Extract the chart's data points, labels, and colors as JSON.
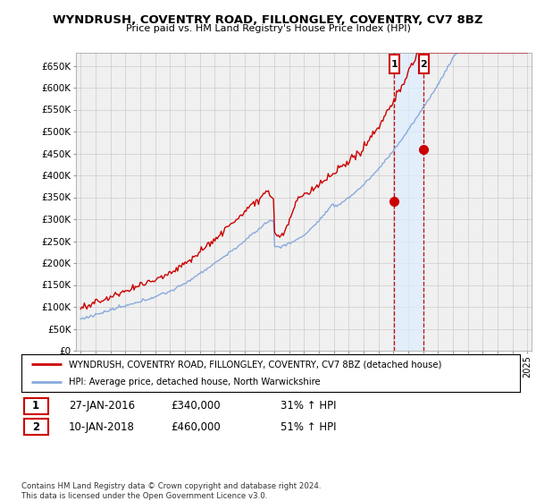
{
  "title": "WYNDRUSH, COVENTRY ROAD, FILLONGLEY, COVENTRY, CV7 8BZ",
  "subtitle": "Price paid vs. HM Land Registry's House Price Index (HPI)",
  "ylim": [
    0,
    680000
  ],
  "yticks": [
    0,
    50000,
    100000,
    150000,
    200000,
    250000,
    300000,
    350000,
    400000,
    450000,
    500000,
    550000,
    600000,
    650000
  ],
  "ytick_labels": [
    "£0",
    "£50K",
    "£100K",
    "£150K",
    "£200K",
    "£250K",
    "£300K",
    "£350K",
    "£400K",
    "£450K",
    "£500K",
    "£550K",
    "£600K",
    "£650K"
  ],
  "sale1_date_num": 2016.07,
  "sale1_price": 340000,
  "sale2_date_num": 2018.05,
  "sale2_price": 460000,
  "legend_line1": "WYNDRUSH, COVENTRY ROAD, FILLONGLEY, COVENTRY, CV7 8BZ (detached house)",
  "legend_line2": "HPI: Average price, detached house, North Warwickshire",
  "table_row1": [
    "1",
    "27-JAN-2016",
    "£340,000",
    "31% ↑ HPI"
  ],
  "table_row2": [
    "2",
    "10-JAN-2018",
    "£460,000",
    "51% ↑ HPI"
  ],
  "copyright": "Contains HM Land Registry data © Crown copyright and database right 2024.\nThis data is licensed under the Open Government Licence v3.0.",
  "red_color": "#cc0000",
  "blue_color": "#88aadd",
  "shade_color": "#ddeeff",
  "background_color": "#ffffff",
  "grid_color": "#cccccc",
  "chart_bg": "#f0f0f0"
}
